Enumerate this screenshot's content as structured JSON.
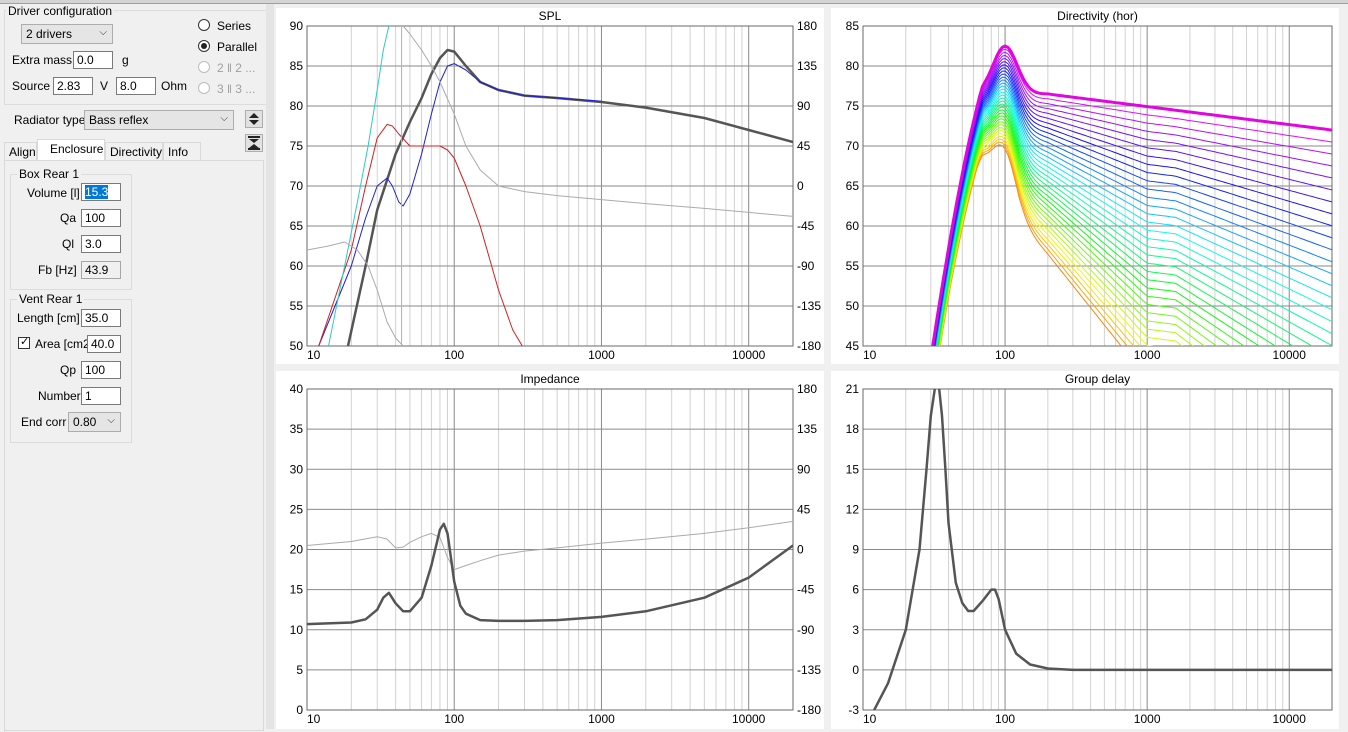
{
  "left": {
    "driver_config": {
      "title": "Driver configuration",
      "drivers": "2 drivers",
      "extra_mass_label": "Extra mass",
      "extra_mass": "0.0",
      "extra_mass_unit": "g",
      "source_label": "Source",
      "source_v": "2.83",
      "source_v_unit": "V",
      "source_ohm": "8.0",
      "source_ohm_unit": "Ohm",
      "series": "Series",
      "parallel": "Parallel",
      "opt22": "2 ‖ 2 ...",
      "opt33": "3 ‖ 3 ..."
    },
    "radiator_label": "Radiator type",
    "radiator_value": "Bass reflex",
    "tabs": [
      "Align",
      "Enclosure",
      "Directivity",
      "Info"
    ],
    "active_tab": "Enclosure",
    "box": {
      "title": "Box Rear 1",
      "volume_label": "Volume [l]",
      "volume": "15.3",
      "qa_label": "Qa",
      "qa": "100",
      "ql_label": "Ql",
      "ql": "3.0",
      "fb_label": "Fb [Hz]",
      "fb": "43.9"
    },
    "vent": {
      "title": "Vent Rear 1",
      "length_label": "Length [cm]",
      "length": "35.0",
      "area_label": "Area [cm2",
      "area": "40.0",
      "qp_label": "Qp",
      "qp": "100",
      "number_label": "Number",
      "number": "1",
      "endcorr_label": "End corr",
      "endcorr": "0.80"
    }
  },
  "plots": {
    "spl": {
      "title": "SPL",
      "x_ticks": [
        "10",
        "100",
        "1000",
        "10000"
      ],
      "y_ticks": [
        "90",
        "85",
        "80",
        "75",
        "70",
        "65",
        "60",
        "55",
        "50"
      ],
      "y2_ticks": [
        "180",
        "135",
        "90",
        "45",
        "0",
        "-45",
        "-90",
        "-135",
        "-180"
      ]
    },
    "directivity": {
      "title": "Directivity (hor)",
      "x_ticks": [
        "10",
        "100",
        "1000",
        "10000"
      ],
      "y_ticks": [
        "85",
        "80",
        "75",
        "70",
        "65",
        "60",
        "55",
        "50",
        "45"
      ]
    },
    "impedance": {
      "title": "Impedance",
      "x_ticks": [
        "10",
        "100",
        "1000",
        "10000"
      ],
      "y_ticks": [
        "40",
        "35",
        "30",
        "25",
        "20",
        "15",
        "10",
        "5",
        "0"
      ],
      "y2_ticks": [
        "180",
        "135",
        "90",
        "45",
        "0",
        "-45",
        "-90",
        "-135",
        "-180"
      ]
    },
    "group_delay": {
      "title": "Group delay",
      "x_ticks": [
        "10",
        "100",
        "1000",
        "10000"
      ],
      "y_ticks": [
        "21",
        "18",
        "15",
        "12",
        "9",
        "6",
        "3",
        "0",
        "-3"
      ]
    }
  },
  "chart_data": [
    {
      "type": "line",
      "title": "SPL",
      "xlim": [
        10,
        20000
      ],
      "x_scale": "log",
      "ylim": [
        50,
        90
      ],
      "y2lim": [
        -180,
        180
      ],
      "grid": true,
      "series": [
        {
          "color": "#555555",
          "x": [
            19,
            25,
            30,
            40,
            50,
            60,
            70,
            80,
            90,
            100,
            120,
            150,
            200,
            300,
            500,
            1000,
            2000,
            5000,
            10000,
            20000
          ],
          "y": [
            50,
            60,
            67,
            74,
            78,
            81,
            84,
            86,
            87,
            86.8,
            85,
            83,
            82,
            81.3,
            81,
            80.5,
            79.8,
            78.5,
            77,
            75.5
          ]
        },
        {
          "color": "#2020d0",
          "x": [
            12,
            20,
            25,
            30,
            35,
            38,
            42,
            45,
            50,
            60,
            70,
            80,
            90,
            100,
            120,
            150,
            200,
            300,
            500,
            1000
          ],
          "y": [
            50,
            60,
            66,
            70,
            71,
            70,
            68,
            67.5,
            69,
            74,
            79,
            83,
            85,
            85.3,
            84.5,
            83,
            82,
            81.3,
            81,
            80.6
          ]
        },
        {
          "color": "#d02020",
          "x": [
            12,
            20,
            25,
            30,
            35,
            38,
            42,
            50,
            60,
            70,
            80,
            90,
            100,
            120,
            150,
            200,
            250,
            290
          ],
          "y": [
            50,
            62,
            70,
            76,
            77.7,
            77.5,
            76.5,
            75,
            75,
            75,
            75,
            74.5,
            73.5,
            70,
            65,
            57,
            52,
            50
          ]
        },
        {
          "color": "#30c8c8",
          "x": [
            14,
            18,
            22,
            26,
            30,
            33,
            36
          ],
          "y": [
            50,
            60,
            68,
            75,
            82,
            87,
            90
          ]
        },
        {
          "color": "#aaaaaa",
          "x": [
            10,
            14,
            18,
            22,
            26,
            30,
            35,
            40,
            45
          ],
          "y": [
            62,
            62.5,
            63,
            62,
            60,
            57,
            53,
            51,
            50
          ]
        },
        {
          "color": "#aaaaaa",
          "x": [
            45,
            50,
            60,
            70,
            80,
            100,
            120,
            150,
            200,
            300,
            500,
            1000,
            2000,
            5000,
            10000,
            20000
          ],
          "y": [
            90,
            89,
            87,
            85,
            83,
            79,
            75,
            72,
            70,
            69.3,
            68.8,
            68.3,
            67.8,
            67.2,
            66.7,
            66.2
          ]
        }
      ]
    },
    {
      "type": "line",
      "title": "Directivity (hor)",
      "xlim": [
        10,
        20000
      ],
      "x_scale": "log",
      "ylim": [
        45,
        85
      ],
      "grid": true
    },
    {
      "type": "line",
      "title": "Impedance",
      "xlim": [
        10,
        20000
      ],
      "x_scale": "log",
      "ylim": [
        0,
        40
      ],
      "y2lim": [
        -180,
        180
      ],
      "grid": true,
      "series": [
        {
          "color": "#555555",
          "x": [
            10,
            20,
            25,
            30,
            33,
            36,
            40,
            45,
            50,
            60,
            70,
            80,
            85,
            90,
            95,
            100,
            110,
            120,
            150,
            200,
            300,
            500,
            1000,
            2000,
            5000,
            10000,
            20000
          ],
          "y": [
            10.7,
            10.9,
            11.3,
            12.5,
            14,
            14.6,
            13.3,
            12.3,
            12.3,
            14,
            18,
            22.5,
            23.2,
            22,
            19,
            16,
            13,
            12,
            11.2,
            11.1,
            11.1,
            11.2,
            11.6,
            12.3,
            14,
            16.5,
            20.5
          ]
        },
        {
          "color": "#aaaaaa",
          "x": [
            10,
            20,
            30,
            35,
            40,
            45,
            50,
            60,
            70,
            80,
            90,
            100,
            120,
            150,
            200,
            300,
            500,
            1000,
            2000,
            5000,
            10000,
            20000
          ],
          "y": [
            20.5,
            21,
            21.6,
            21.3,
            20.2,
            20.3,
            20.9,
            21.6,
            22,
            21.5,
            19,
            17.5,
            18,
            18.6,
            19.3,
            19.8,
            20.2,
            20.8,
            21.3,
            22,
            22.7,
            23.5
          ]
        }
      ]
    },
    {
      "type": "line",
      "title": "Group delay",
      "xlim": [
        10,
        20000
      ],
      "x_scale": "log",
      "ylim": [
        -3,
        21
      ],
      "grid": true,
      "series": [
        {
          "color": "#555555",
          "x": [
            12,
            15,
            20,
            25,
            28,
            30,
            32,
            34,
            36,
            38,
            40,
            45,
            50,
            55,
            60,
            70,
            80,
            85,
            90,
            100,
            120,
            150,
            200,
            300,
            500,
            1000,
            5000,
            20000
          ],
          "y": [
            -3,
            -1,
            3,
            9,
            15,
            19,
            21,
            21.5,
            19,
            15,
            11,
            6.5,
            5,
            4.4,
            4.4,
            5.2,
            6,
            6,
            5.3,
            3,
            1.2,
            0.4,
            0.1,
            0,
            0,
            0,
            0,
            0
          ]
        }
      ]
    }
  ]
}
